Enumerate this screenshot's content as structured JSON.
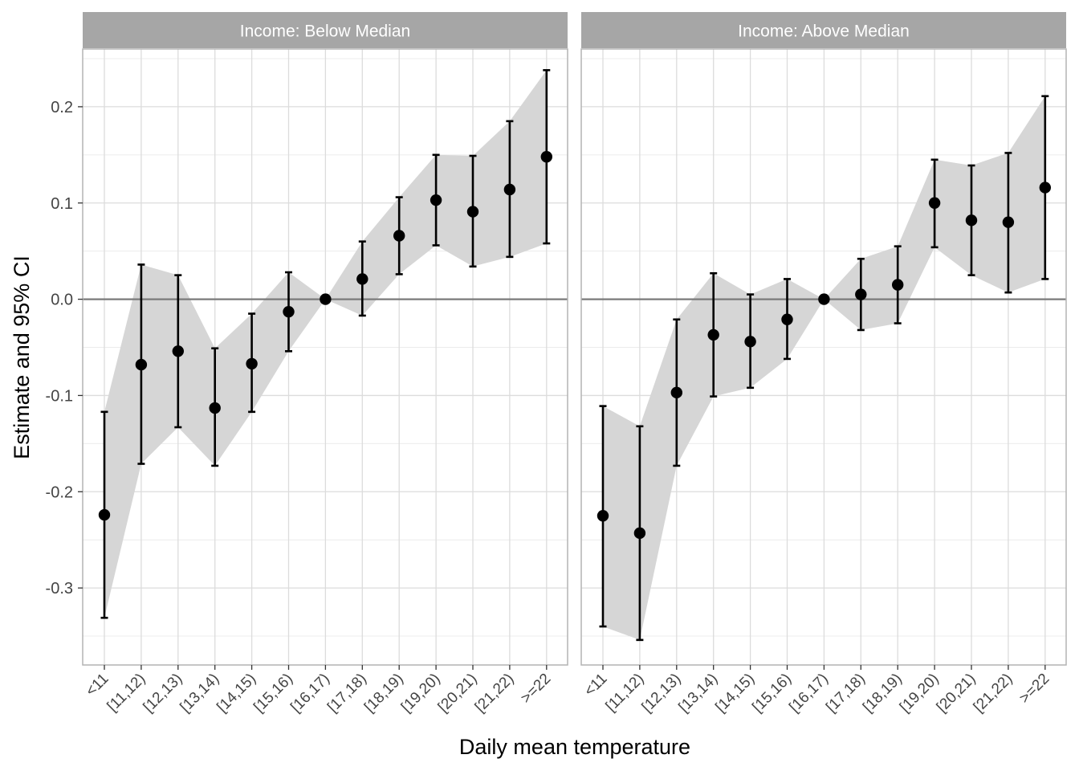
{
  "chart_data": {
    "type": "scatter",
    "subtype": "point-errorbar-ribbon-faceted",
    "xlabel": "Daily mean temperature",
    "ylabel": "Estimate and 95% CI",
    "categories": [
      "<11",
      "[11,12)",
      "[12,13)",
      "[13,14)",
      "[14,15)",
      "[15,16)",
      "[16,17)",
      "[17,18)",
      "[18,19)",
      "[19,20)",
      "[20,21)",
      "[21,22)",
      ">=22"
    ],
    "ylim": [
      -0.38,
      0.26
    ],
    "yticks": [
      -0.3,
      -0.2,
      -0.1,
      0.0,
      0.1,
      0.2
    ],
    "ytick_labels": [
      "-0.3",
      "-0.2",
      "-0.1",
      "0.0",
      "0.1",
      "0.2"
    ],
    "reference_line": 0,
    "grid": true,
    "colors": {
      "strip": "#a6a6a6",
      "ribbon": "#d6d6d6",
      "point": "#000000",
      "grid": "#dcdcdc",
      "zero_line": "#7a7a7a",
      "panel_border": "#b3b3b3"
    },
    "panels": [
      {
        "strip": "Income: Below Median",
        "estimate": [
          -0.224,
          -0.068,
          -0.054,
          -0.113,
          -0.067,
          -0.013,
          0.0,
          0.021,
          0.066,
          0.103,
          0.091,
          0.114,
          0.148
        ],
        "lower": [
          -0.331,
          -0.171,
          -0.133,
          -0.173,
          -0.117,
          -0.054,
          0.0,
          -0.017,
          0.026,
          0.056,
          0.034,
          0.044,
          0.058
        ],
        "upper": [
          -0.117,
          0.036,
          0.025,
          -0.051,
          -0.015,
          0.028,
          0.0,
          0.06,
          0.106,
          0.15,
          0.149,
          0.185,
          0.238
        ]
      },
      {
        "strip": "Income: Above Median",
        "estimate": [
          -0.225,
          -0.243,
          -0.097,
          -0.037,
          -0.044,
          -0.021,
          0.0,
          0.005,
          0.015,
          0.1,
          0.082,
          0.08,
          0.116
        ],
        "lower": [
          -0.34,
          -0.354,
          -0.173,
          -0.101,
          -0.092,
          -0.062,
          0.0,
          -0.032,
          -0.025,
          0.054,
          0.025,
          0.007,
          0.021
        ],
        "upper": [
          -0.111,
          -0.132,
          -0.021,
          0.027,
          0.005,
          0.021,
          0.0,
          0.042,
          0.055,
          0.145,
          0.139,
          0.152,
          0.211
        ]
      }
    ]
  }
}
